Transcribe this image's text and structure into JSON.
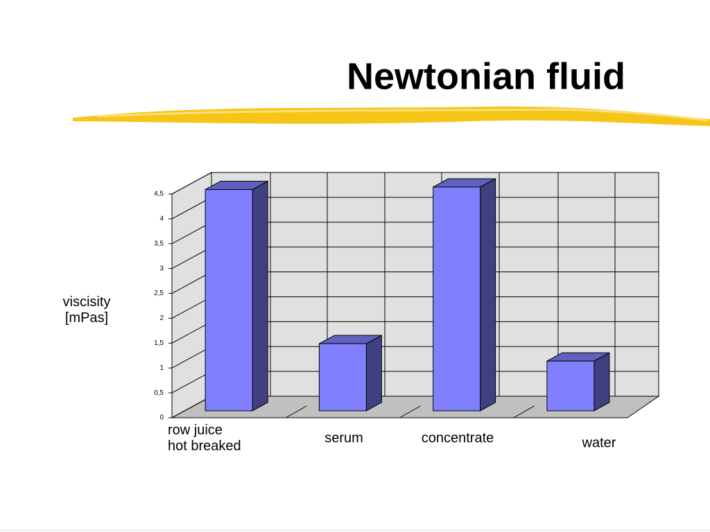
{
  "chart_data": {
    "type": "bar3d",
    "title": "Newtonian fluid",
    "y_label": "viscisity\n[mPas]",
    "categories": [
      "row juice\nhot breaked",
      "serum",
      "concentrate",
      "water"
    ],
    "values": [
      4.45,
      1.35,
      4.5,
      1.0
    ],
    "color": "#8080ff",
    "ylim": [
      0,
      4.5
    ],
    "yticks": [
      0,
      {
        "value": 0.5,
        "label": "0,5"
      },
      1,
      {
        "value": 1.5,
        "label": "1,5"
      },
      2,
      {
        "value": 2.5,
        "label": "2,5"
      },
      3,
      {
        "value": 3.5,
        "label": "3,5"
      },
      4,
      {
        "value": 4.5,
        "label": "4,5"
      }
    ],
    "grid": true
  }
}
